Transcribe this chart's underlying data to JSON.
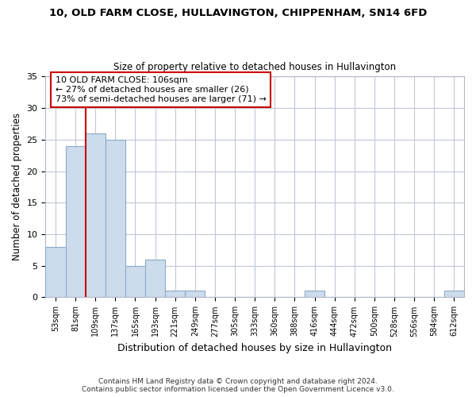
{
  "title1": "10, OLD FARM CLOSE, HULLAVINGTON, CHIPPENHAM, SN14 6FD",
  "title2": "Size of property relative to detached houses in Hullavington",
  "xlabel": "Distribution of detached houses by size in Hullavington",
  "ylabel": "Number of detached properties",
  "bin_labels": [
    "53sqm",
    "81sqm",
    "109sqm",
    "137sqm",
    "165sqm",
    "193sqm",
    "221sqm",
    "249sqm",
    "277sqm",
    "305sqm",
    "333sqm",
    "360sqm",
    "388sqm",
    "416sqm",
    "444sqm",
    "472sqm",
    "500sqm",
    "528sqm",
    "556sqm",
    "584sqm",
    "612sqm"
  ],
  "values": [
    8,
    24,
    26,
    25,
    5,
    6,
    1,
    1,
    0,
    0,
    0,
    0,
    0,
    1,
    0,
    0,
    0,
    0,
    0,
    0,
    1
  ],
  "bar_color": "#ccdcec",
  "bar_edge_color": "#8aacc8",
  "property_label": "10 OLD FARM CLOSE: 106sqm",
  "annotation_line1": "← 27% of detached houses are smaller (26)",
  "annotation_line2": "73% of semi-detached houses are larger (71) →",
  "red_line_color": "#cc0000",
  "annotation_box_color": "#ffffff",
  "annotation_box_edge": "#cc0000",
  "ylim": [
    0,
    35
  ],
  "yticks": [
    0,
    5,
    10,
    15,
    20,
    25,
    30,
    35
  ],
  "footer1": "Contains HM Land Registry data © Crown copyright and database right 2024.",
  "footer2": "Contains public sector information licensed under the Open Government Licence v3.0.",
  "bg_color": "#ffffff",
  "plot_bg_color": "#ffffff"
}
